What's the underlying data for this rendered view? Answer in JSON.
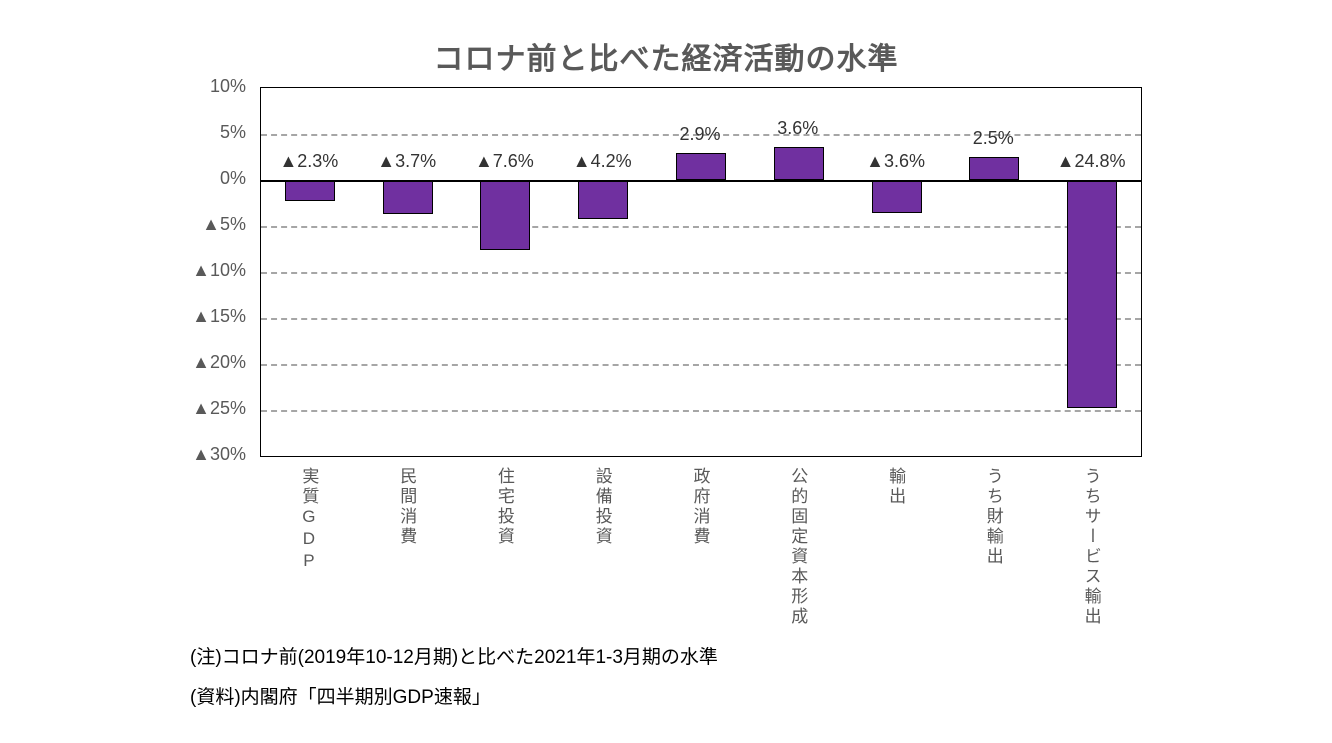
{
  "chart_data": {
    "type": "bar",
    "title": "コロナ前と比べた経済活動の水準",
    "categories": [
      "実質GDP",
      "民間消費",
      "住宅投資",
      "設備投資",
      "政府消費",
      "公的固定資本形成",
      "輸出",
      "うち財輸出",
      "うちサービス輸出"
    ],
    "values": [
      -2.3,
      -3.7,
      -7.6,
      -4.2,
      2.9,
      3.6,
      -3.6,
      2.5,
      -24.8
    ],
    "data_labels": [
      "▲2.3%",
      "▲3.7%",
      "▲7.6%",
      "▲4.2%",
      "2.9%",
      "3.6%",
      "▲3.6%",
      "2.5%",
      "▲24.8%"
    ],
    "y_ticks": [
      {
        "value": 10,
        "label": "10%"
      },
      {
        "value": 5,
        "label": "5%"
      },
      {
        "value": 0,
        "label": "0%"
      },
      {
        "value": -5,
        "label": "▲5%"
      },
      {
        "value": -10,
        "label": "▲10%"
      },
      {
        "value": -15,
        "label": "▲15%"
      },
      {
        "value": -20,
        "label": "▲20%"
      },
      {
        "value": -25,
        "label": "▲25%"
      },
      {
        "value": -30,
        "label": "▲30%"
      }
    ],
    "ylim": [
      -30,
      10
    ],
    "xlabel": "",
    "ylabel": "",
    "grid": "horizontal-dashed",
    "legend": "none",
    "bar_color": "#7030A0",
    "bar_border_color": "#000000",
    "negative_notation": "▲"
  },
  "notes": {
    "note1": "(注)コロナ前(2019年10-12月期)と比べた2021年1-3月期の水準",
    "note2": "(資料)内閣府「四半期別GDP速報」"
  }
}
